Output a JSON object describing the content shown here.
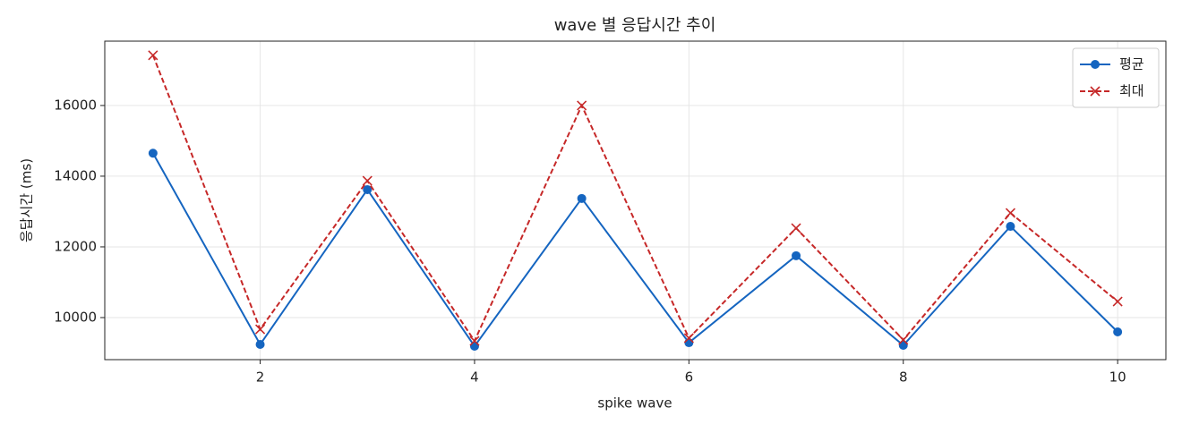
{
  "chart_data": {
    "type": "line",
    "title": "wave 별 응답시간 추이",
    "x_label": "spike wave",
    "y_label": "응답시간 (ms)",
    "x": [
      1,
      2,
      3,
      4,
      5,
      6,
      7,
      8,
      9,
      10
    ],
    "series": [
      {
        "name": "평균",
        "color": "#1565c0",
        "marker": "o",
        "linestyle": "solid",
        "values": [
          14650,
          9240,
          13620,
          9190,
          13370,
          9290,
          11750,
          9215,
          12580,
          9595
        ]
      },
      {
        "name": "최대",
        "color": "#c62828",
        "marker": "x",
        "linestyle": "dashed",
        "values": [
          17420,
          9670,
          13870,
          9340,
          16000,
          9420,
          12530,
          9370,
          12960,
          10455
        ]
      }
    ],
    "xlim": [
      0.55,
      10.45
    ],
    "xticks": [
      2,
      4,
      6,
      8,
      10
    ],
    "ylim": [
      8810,
      17820
    ],
    "yticks": [
      10000,
      12000,
      14000,
      16000
    ],
    "grid": true,
    "legend": "upper right"
  }
}
